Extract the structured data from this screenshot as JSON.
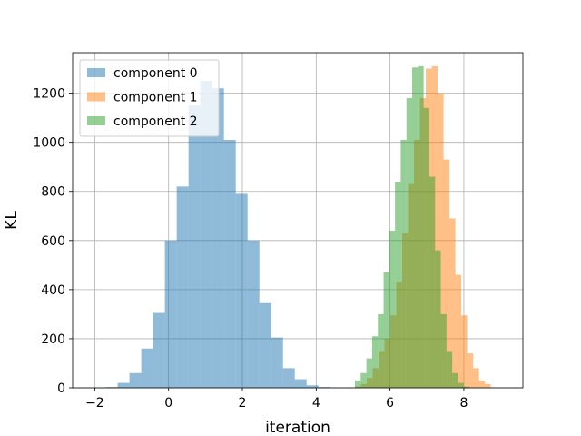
{
  "chart_data": {
    "type": "histogram",
    "title": "",
    "xlabel": "iteration",
    "ylabel": "KL",
    "xlim": [
      -2.6,
      9.6
    ],
    "ylim": [
      0,
      1365
    ],
    "xticks": [
      -2,
      0,
      2,
      4,
      6,
      8
    ],
    "yticks": [
      0,
      200,
      400,
      600,
      800,
      1000,
      1200
    ],
    "grid": true,
    "legend_position": "top-left",
    "series": [
      {
        "name": "component 0",
        "color": "#1f77b4",
        "alpha": 0.5,
        "bin_start": -1.7,
        "bin_width": 0.32,
        "counts": [
          3,
          20,
          60,
          160,
          305,
          600,
          820,
          1150,
          1250,
          1220,
          1010,
          790,
          600,
          345,
          205,
          80,
          35,
          10,
          3
        ]
      },
      {
        "name": "component 1",
        "color": "#ff7f0e",
        "alpha": 0.5,
        "bin_start": 5.05,
        "bin_width": 0.16,
        "counts": [
          5,
          15,
          40,
          80,
          150,
          200,
          295,
          430,
          630,
          830,
          1010,
          1180,
          1300,
          1310,
          1200,
          930,
          690,
          460,
          295,
          140,
          80,
          30,
          15
        ]
      },
      {
        "name": "component 2",
        "color": "#2ca02c",
        "alpha": 0.5,
        "bin_start": 5.05,
        "bin_width": 0.155,
        "counts": [
          30,
          60,
          120,
          210,
          300,
          470,
          640,
          840,
          1010,
          1180,
          1305,
          1310,
          1140,
          860,
          560,
          300,
          150,
          60,
          20,
          5
        ]
      }
    ]
  }
}
